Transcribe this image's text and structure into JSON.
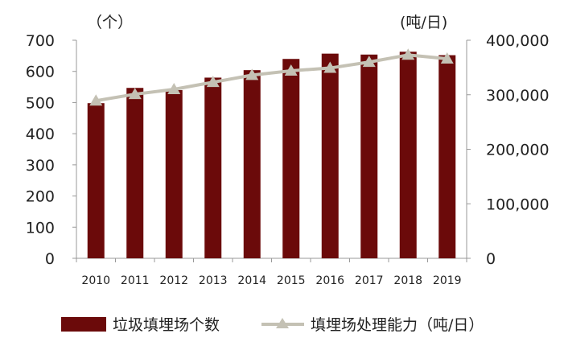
{
  "chart_data": {
    "type": "bar+line",
    "categories": [
      "2010",
      "2011",
      "2012",
      "2013",
      "2014",
      "2015",
      "2016",
      "2017",
      "2018",
      "2019"
    ],
    "series": [
      {
        "name": "垃圾填埋场个数",
        "kind": "bar",
        "axis": "left",
        "color": "#6b0a0a",
        "values": [
          498,
          547,
          540,
          580,
          604,
          640,
          657,
          654,
          663,
          652
        ]
      },
      {
        "name": "填埋场处理能力（吨/日）",
        "kind": "line",
        "axis": "right",
        "color": "#c4c1b4",
        "marker": "triangle",
        "values": [
          289000,
          301000,
          310000,
          323000,
          336000,
          344000,
          349000,
          360000,
          373000,
          366000
        ]
      }
    ],
    "left_axis": {
      "unit": "（个）",
      "ylim": [
        0,
        700
      ],
      "ticks": [
        "0",
        "100",
        "200",
        "300",
        "400",
        "500",
        "600",
        "700"
      ]
    },
    "right_axis": {
      "unit": "(吨/日)",
      "ylim": [
        0,
        400000
      ],
      "ticks": [
        "0",
        "100,000",
        "200,000",
        "300,000",
        "400,000"
      ]
    },
    "legend_position": "bottom",
    "grid": false
  }
}
